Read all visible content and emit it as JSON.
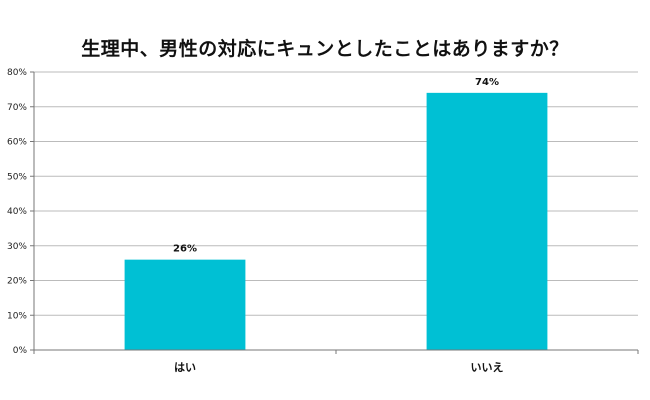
{
  "chart_data": {
    "type": "bar",
    "title": "生理中、男性の対応にキュンとしたことはありますか？",
    "xlabel": "",
    "ylabel": "",
    "categories": [
      "はい",
      "いいえ"
    ],
    "values": [
      26,
      74
    ],
    "data_labels": [
      "26%",
      "74%"
    ],
    "ylim": [
      0,
      80
    ],
    "yticks": [
      0,
      10,
      20,
      30,
      40,
      50,
      60,
      70,
      80
    ],
    "ytick_labels": [
      "0%",
      "10%",
      "20%",
      "30%",
      "40%",
      "50%",
      "60%",
      "70%",
      "80%"
    ],
    "grid": true,
    "legend": "none",
    "bar_color": "#00c0d4",
    "grid_color": "#bbbbbb"
  }
}
